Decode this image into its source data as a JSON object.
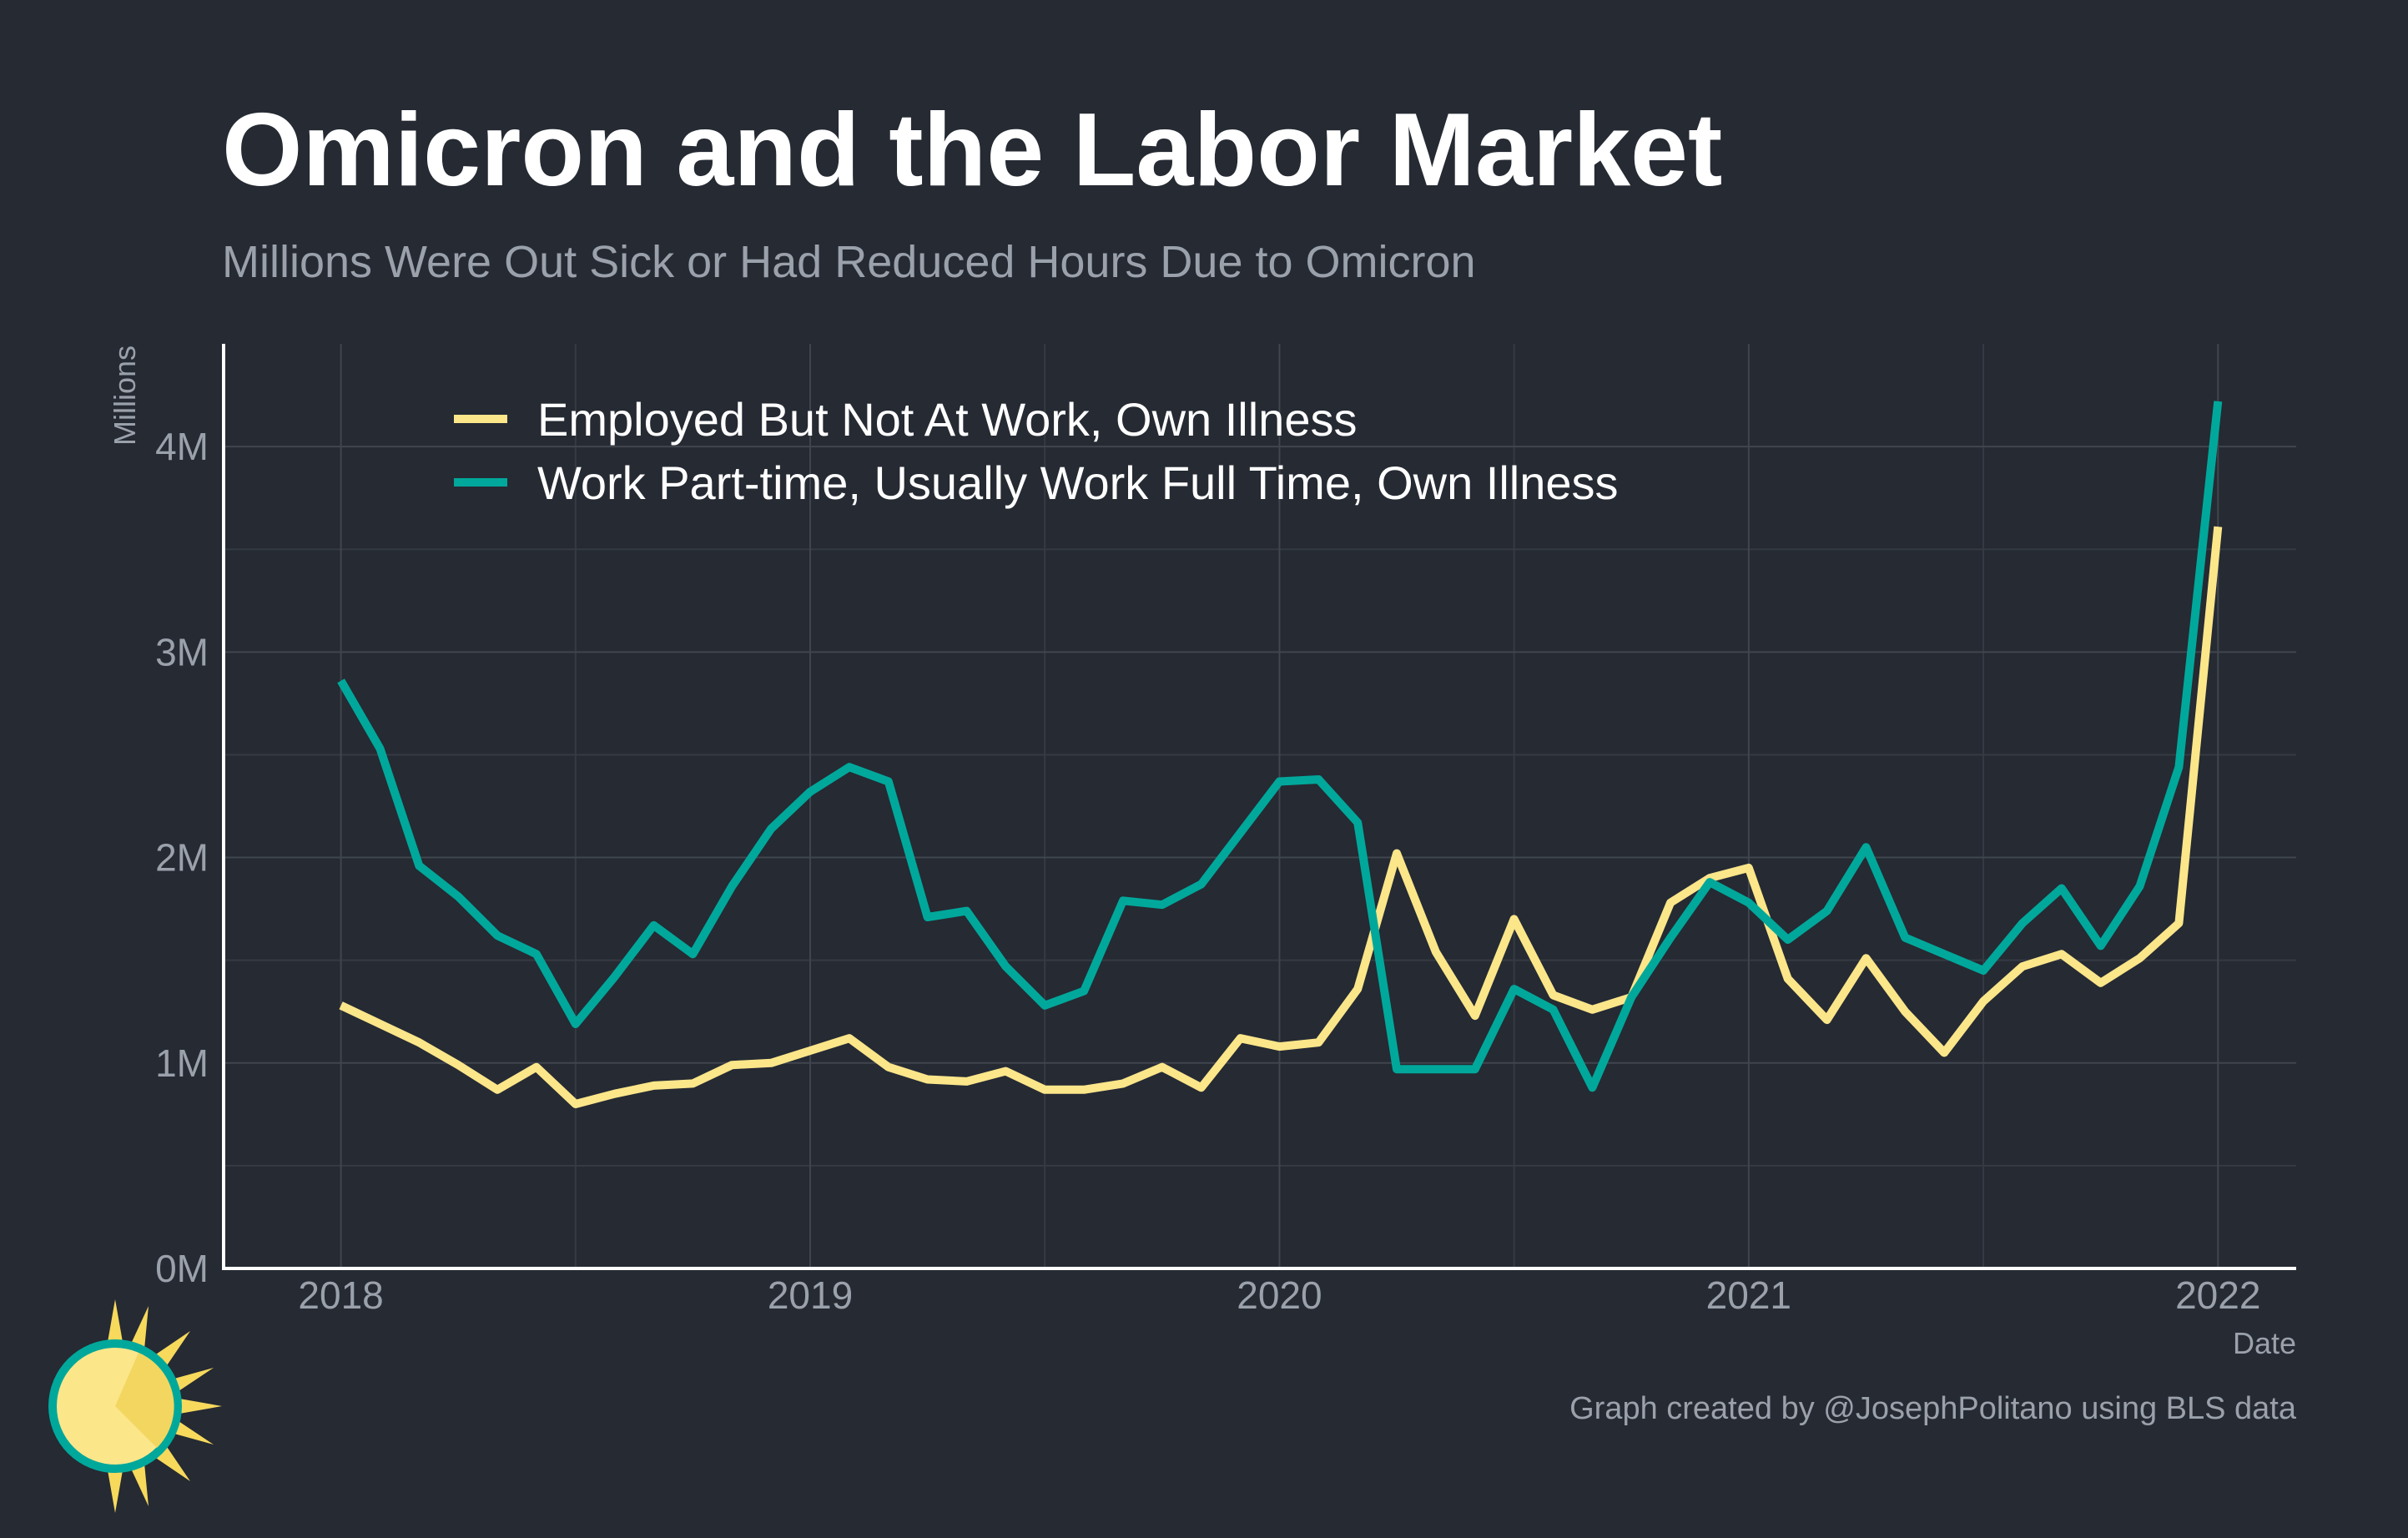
{
  "chart_data": {
    "type": "line",
    "title": "Omicron and the Labor Market",
    "subtitle": "Millions Were Out Sick or Had Reduced Hours Due to Omicron",
    "xlabel": "Date",
    "ylabel": "Millions",
    "caption": "Graph created by @JosephPolitano using BLS data",
    "x_range": [
      "2017-10",
      "2022-03"
    ],
    "ylim": [
      0,
      4.5
    ],
    "x_ticks": [
      {
        "date": "2018-01",
        "label": "2018"
      },
      {
        "date": "2019-01",
        "label": "2019"
      },
      {
        "date": "2020-01",
        "label": "2020"
      },
      {
        "date": "2021-01",
        "label": "2021"
      },
      {
        "date": "2022-01",
        "label": "2022"
      }
    ],
    "y_ticks": [
      {
        "value": 0,
        "label": "0M"
      },
      {
        "value": 1,
        "label": "1M"
      },
      {
        "value": 2,
        "label": "2M"
      },
      {
        "value": 3,
        "label": "3M"
      },
      {
        "value": 4,
        "label": "4M"
      }
    ],
    "y_minor": [
      0.5,
      1.5,
      2.5,
      3.5
    ],
    "x_minor": [
      "2018-07",
      "2019-07",
      "2020-07",
      "2021-07"
    ],
    "grid": true,
    "legend_position": "top-left",
    "x": [
      "2018-01",
      "2018-02",
      "2018-03",
      "2018-04",
      "2018-05",
      "2018-06",
      "2018-07",
      "2018-08",
      "2018-09",
      "2018-10",
      "2018-11",
      "2018-12",
      "2019-01",
      "2019-02",
      "2019-03",
      "2019-04",
      "2019-05",
      "2019-06",
      "2019-07",
      "2019-08",
      "2019-09",
      "2019-10",
      "2019-11",
      "2019-12",
      "2020-01",
      "2020-02",
      "2020-03",
      "2020-04",
      "2020-05",
      "2020-06",
      "2020-07",
      "2020-08",
      "2020-09",
      "2020-10",
      "2020-11",
      "2020-12",
      "2021-01",
      "2021-02",
      "2021-03",
      "2021-04",
      "2021-05",
      "2021-06",
      "2021-07",
      "2021-08",
      "2021-09",
      "2021-10",
      "2021-11",
      "2021-12",
      "2022-01"
    ],
    "series": [
      {
        "name": "Employed But Not At Work, Own Illness",
        "color": "#fce68a",
        "values": [
          1.28,
          1.19,
          1.1,
          0.99,
          0.87,
          0.98,
          0.8,
          0.85,
          0.89,
          0.9,
          0.99,
          1.0,
          1.06,
          1.12,
          0.98,
          0.92,
          0.91,
          0.96,
          0.87,
          0.87,
          0.9,
          0.98,
          0.88,
          1.12,
          1.08,
          1.1,
          1.36,
          2.02,
          1.54,
          1.23,
          1.7,
          1.33,
          1.26,
          1.32,
          1.78,
          1.9,
          1.95,
          1.41,
          1.21,
          1.51,
          1.25,
          1.05,
          1.3,
          1.47,
          1.53,
          1.39,
          1.51,
          1.68,
          3.61
        ]
      },
      {
        "name": "Work Part-time, Usually Work Full Time, Own Illness",
        "color": "#00a89b",
        "values": [
          2.86,
          2.53,
          1.96,
          1.81,
          1.62,
          1.53,
          1.19,
          1.42,
          1.67,
          1.53,
          1.86,
          2.14,
          2.32,
          2.44,
          2.37,
          1.71,
          1.74,
          1.47,
          1.28,
          1.35,
          1.79,
          1.77,
          1.87,
          2.12,
          2.37,
          2.38,
          2.17,
          0.97,
          0.97,
          0.97,
          1.36,
          1.26,
          0.88,
          1.32,
          1.61,
          1.88,
          1.78,
          1.6,
          1.74,
          2.05,
          1.61,
          1.53,
          1.45,
          1.68,
          1.85,
          1.57,
          1.86,
          2.44,
          4.22
        ]
      }
    ]
  }
}
